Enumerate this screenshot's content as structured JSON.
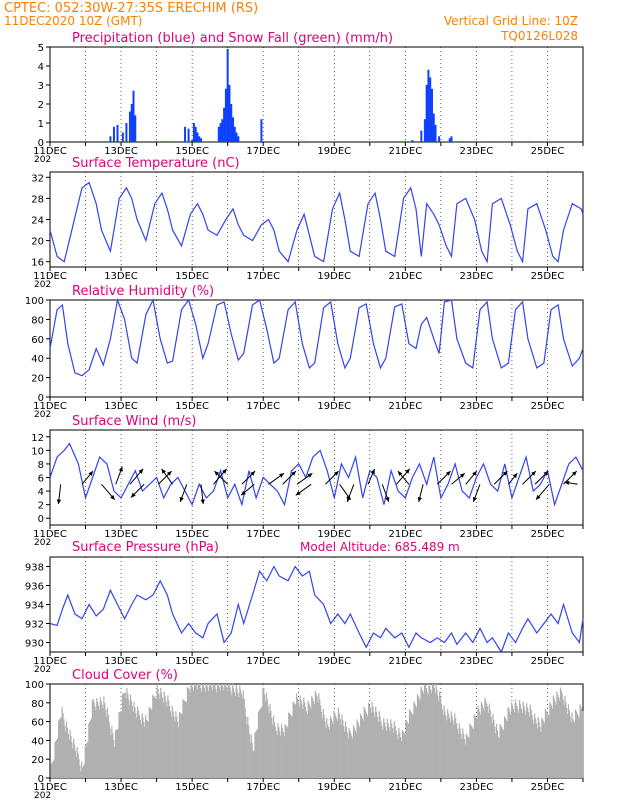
{
  "header": {
    "line1": "CPTEC:   052:30W-27:35S   ERECHIM (RS)",
    "line2": "11DEC2020 10Z (GMT)",
    "vertical_grid": "Vertical Grid Line: 10Z",
    "code": "TQ0126L028",
    "model_altitude": "Model Altitude: 685.489 m"
  },
  "colors": {
    "header": "#ff8000",
    "title": "#e0007a",
    "line": "#3344ee",
    "bar_blue": "#1040ff",
    "bar_green": "#00b000",
    "cloud": "#b0b0b0"
  },
  "chart_data": [
    {
      "type": "bar",
      "title": "Precipitation (blue) and Snow Fall (green) (mm/h)",
      "x_tick_labels": [
        "11DEC",
        "13DEC",
        "15DEC",
        "17DEC",
        "19DEC",
        "21DEC",
        "23DEC",
        "25DEC"
      ],
      "year_fragment": "202",
      "xlim_days": [
        11,
        26
      ],
      "ylim": [
        0,
        5
      ],
      "y_ticks": [
        0,
        1,
        2,
        3,
        4,
        5
      ],
      "series": [
        {
          "name": "Precipitation",
          "color": "blue",
          "x": [
            12.7,
            12.8,
            12.9,
            13.05,
            13.15,
            13.25,
            13.3,
            13.35,
            13.4,
            14.8,
            14.9,
            15.0,
            15.05,
            15.1,
            15.15,
            15.2,
            15.25,
            15.75,
            15.8,
            15.85,
            15.9,
            15.95,
            16.0,
            16.05,
            16.1,
            16.15,
            16.2,
            16.25,
            16.3,
            16.95,
            21.2,
            21.45,
            21.55,
            21.6,
            21.65,
            21.7,
            21.75,
            21.8,
            21.85,
            21.95,
            22.25,
            22.3
          ],
          "y": [
            0.3,
            0.8,
            0.9,
            0.5,
            1.0,
            1.6,
            2.0,
            2.7,
            1.4,
            0.8,
            0.7,
            0.1,
            1.0,
            0.8,
            0.5,
            0.3,
            0.2,
            0.8,
            1.0,
            1.2,
            1.8,
            2.8,
            4.9,
            3.0,
            2.0,
            1.3,
            0.8,
            0.5,
            0.3,
            1.2,
            0.1,
            0.6,
            1.2,
            3.0,
            3.8,
            3.4,
            2.8,
            1.5,
            0.9,
            0.3,
            0.2,
            0.3
          ]
        },
        {
          "name": "Snow Fall",
          "color": "green",
          "x": [
            11.2,
            12.0,
            12.6,
            14.2,
            14.5,
            17.5,
            18.2,
            19.5,
            20.6,
            21.0,
            22.6,
            23.4,
            24.5
          ],
          "y": [
            0.05,
            0.05,
            0.05,
            0.05,
            0.05,
            0.05,
            0.05,
            0.05,
            0.05,
            0.05,
            0.05,
            0.05,
            0.05
          ]
        }
      ]
    },
    {
      "type": "line",
      "title": "Surface Temperature (nC)",
      "x_tick_labels": [
        "11DEC",
        "13DEC",
        "15DEC",
        "17DEC",
        "19DEC",
        "21DEC",
        "23DEC",
        "25DEC"
      ],
      "year_fragment": "202",
      "xlim_days": [
        11,
        26
      ],
      "ylim": [
        15,
        33
      ],
      "y_ticks": [
        16,
        20,
        24,
        28,
        32
      ],
      "x": [
        11.0,
        11.2,
        11.4,
        11.65,
        11.9,
        12.1,
        12.3,
        12.45,
        12.7,
        12.95,
        13.15,
        13.3,
        13.45,
        13.7,
        13.95,
        14.15,
        14.3,
        14.45,
        14.7,
        14.95,
        15.15,
        15.3,
        15.45,
        15.7,
        15.95,
        16.15,
        16.3,
        16.45,
        16.7,
        16.95,
        17.15,
        17.3,
        17.45,
        17.7,
        17.95,
        18.15,
        18.3,
        18.45,
        18.7,
        18.95,
        19.15,
        19.3,
        19.45,
        19.7,
        19.95,
        20.15,
        20.3,
        20.45,
        20.7,
        20.95,
        21.15,
        21.3,
        21.45,
        21.6,
        21.8,
        21.95,
        22.15,
        22.3,
        22.45,
        22.7,
        22.95,
        23.15,
        23.3,
        23.45,
        23.7,
        23.95,
        24.15,
        24.3,
        24.45,
        24.7,
        24.95,
        25.15,
        25.3,
        25.45,
        25.7,
        25.95,
        26.0
      ],
      "y": [
        22,
        17,
        16,
        23,
        30,
        31,
        27,
        22,
        18,
        28,
        30,
        28,
        24,
        20,
        27,
        29,
        26,
        22,
        19,
        25,
        27,
        25,
        22,
        21,
        24,
        26,
        23,
        21,
        20,
        23,
        24,
        22,
        18,
        16,
        22,
        25,
        21,
        17,
        16,
        26,
        29,
        24,
        18,
        17,
        27,
        29,
        24,
        18,
        17,
        28,
        30,
        26,
        17,
        27,
        25,
        23,
        19,
        17,
        27,
        28,
        24,
        18,
        16,
        27,
        28,
        23,
        18,
        16,
        26,
        27,
        22,
        17,
        16,
        22,
        27,
        26,
        25
      ]
    },
    {
      "type": "line",
      "title": "Relative Humidity (%)",
      "x_tick_labels": [
        "11DEC",
        "13DEC",
        "15DEC",
        "17DEC",
        "19DEC",
        "21DEC",
        "23DEC",
        "25DEC"
      ],
      "year_fragment": "202",
      "xlim_days": [
        11,
        26
      ],
      "ylim": [
        0,
        100
      ],
      "y_ticks": [
        0,
        20,
        40,
        60,
        80,
        100
      ],
      "x": [
        11.0,
        11.2,
        11.35,
        11.5,
        11.7,
        11.9,
        12.1,
        12.3,
        12.5,
        12.7,
        12.9,
        13.1,
        13.3,
        13.45,
        13.7,
        13.9,
        14.1,
        14.3,
        14.45,
        14.7,
        14.9,
        15.1,
        15.3,
        15.45,
        15.7,
        15.9,
        16.1,
        16.3,
        16.45,
        16.7,
        16.9,
        17.1,
        17.3,
        17.45,
        17.7,
        17.9,
        18.1,
        18.3,
        18.45,
        18.7,
        18.9,
        19.1,
        19.3,
        19.45,
        19.7,
        19.9,
        20.1,
        20.3,
        20.45,
        20.7,
        20.9,
        21.1,
        21.3,
        21.45,
        21.6,
        21.8,
        21.95,
        22.1,
        22.3,
        22.45,
        22.7,
        22.9,
        23.1,
        23.3,
        23.45,
        23.7,
        23.9,
        24.1,
        24.3,
        24.45,
        24.7,
        24.9,
        25.1,
        25.3,
        25.45,
        25.7,
        25.9,
        26.0
      ],
      "y": [
        50,
        90,
        95,
        55,
        25,
        22,
        28,
        50,
        33,
        60,
        100,
        80,
        40,
        35,
        85,
        100,
        60,
        35,
        37,
        90,
        100,
        75,
        40,
        55,
        95,
        98,
        65,
        38,
        45,
        95,
        100,
        70,
        35,
        40,
        90,
        98,
        55,
        30,
        35,
        92,
        98,
        55,
        30,
        40,
        92,
        96,
        55,
        30,
        40,
        93,
        96,
        55,
        50,
        75,
        82,
        60,
        45,
        98,
        100,
        60,
        35,
        30,
        90,
        98,
        60,
        30,
        35,
        90,
        98,
        60,
        30,
        35,
        90,
        95,
        60,
        32,
        40,
        50
      ]
    },
    {
      "type": "line",
      "title": "Surface Wind (m/s)",
      "x_tick_labels": [
        "11DEC",
        "13DEC",
        "15DEC",
        "17DEC",
        "19DEC",
        "21DEC",
        "23DEC",
        "25DEC"
      ],
      "year_fragment": "202",
      "xlim_days": [
        11,
        26
      ],
      "ylim": [
        -1,
        13
      ],
      "y_ticks": [
        0,
        2,
        4,
        6,
        8,
        10,
        12
      ],
      "x": [
        11.0,
        11.2,
        11.4,
        11.55,
        11.8,
        12.0,
        12.2,
        12.4,
        12.6,
        12.8,
        13.0,
        13.2,
        13.4,
        13.6,
        13.8,
        14.0,
        14.2,
        14.4,
        14.6,
        14.8,
        15.0,
        15.2,
        15.4,
        15.6,
        15.8,
        16.0,
        16.2,
        16.4,
        16.6,
        16.8,
        17.0,
        17.2,
        17.4,
        17.6,
        17.8,
        18.0,
        18.2,
        18.4,
        18.6,
        18.8,
        19.0,
        19.2,
        19.4,
        19.6,
        19.8,
        20.0,
        20.2,
        20.4,
        20.6,
        20.8,
        21.0,
        21.2,
        21.4,
        21.6,
        21.8,
        22.0,
        22.2,
        22.4,
        22.6,
        22.8,
        23.0,
        23.2,
        23.4,
        23.6,
        23.8,
        24.0,
        24.2,
        24.4,
        24.6,
        24.8,
        25.0,
        25.2,
        25.4,
        25.6,
        25.8,
        26.0
      ],
      "y": [
        6,
        9,
        10,
        11,
        8,
        3,
        6,
        9,
        8,
        4,
        3,
        5,
        7,
        4,
        5,
        6,
        3,
        5,
        6,
        4,
        2,
        5,
        3,
        4,
        7,
        3,
        5,
        2,
        7,
        3,
        6,
        5,
        4,
        2,
        7,
        8,
        6,
        9,
        10,
        7,
        3,
        8,
        6,
        9,
        3,
        7,
        6,
        2,
        7,
        4,
        3,
        6,
        8,
        5,
        9,
        3,
        5,
        8,
        4,
        3,
        6,
        8,
        5,
        4,
        8,
        3,
        6,
        9,
        4,
        5,
        7,
        2,
        5,
        8,
        9,
        7
      ],
      "vectors": {
        "x": [
          11.3,
          11.9,
          12.45,
          12.85,
          13.25,
          13.65,
          14.05,
          14.45,
          14.85,
          15.25,
          15.6,
          16.0,
          16.4,
          16.75,
          17.15,
          17.55,
          17.95,
          18.35,
          18.75,
          19.15,
          19.55,
          19.95,
          20.35,
          20.75,
          21.1,
          21.5,
          21.9,
          22.3,
          22.7,
          23.1,
          23.5,
          23.9,
          24.3,
          24.65,
          25.05,
          25.45,
          25.85
        ],
        "u": [
          -0.1,
          0.5,
          0.6,
          0.3,
          0.6,
          -0.6,
          0.6,
          -0.5,
          -0.3,
          0.1,
          0.6,
          -0.6,
          0.6,
          -0.6,
          0.7,
          0.6,
          0.7,
          -0.7,
          0.6,
          0.5,
          -0.3,
          0.3,
          0.3,
          0.6,
          -0.5,
          -0.2,
          0.6,
          0.6,
          0.5,
          -0.3,
          0.6,
          0.4,
          0.6,
          0.6,
          -0.6,
          0.6,
          -0.6
        ],
        "v": [
          -0.9,
          0.6,
          -0.7,
          0.8,
          0.7,
          -0.6,
          0.6,
          0.7,
          -0.8,
          -0.9,
          0.7,
          0.6,
          0.6,
          -0.5,
          0.5,
          0.6,
          0.5,
          -0.5,
          0.6,
          -0.7,
          -0.8,
          0.7,
          -0.8,
          0.7,
          0.6,
          -0.8,
          0.6,
          0.5,
          0.6,
          -0.8,
          0.6,
          0.5,
          0.6,
          0.6,
          -0.7,
          0.6,
          0.1
        ]
      }
    },
    {
      "type": "line",
      "title": "Surface Pressure (hPa)",
      "x_tick_labels": [
        "11DEC",
        "13DEC",
        "15DEC",
        "17DEC",
        "19DEC",
        "21DEC",
        "23DEC",
        "25DEC"
      ],
      "year_fragment": "202",
      "xlim_days": [
        11,
        26
      ],
      "ylim": [
        929,
        939
      ],
      "y_ticks": [
        930,
        932,
        934,
        936,
        938
      ],
      "x": [
        11.0,
        11.2,
        11.35,
        11.5,
        11.7,
        11.9,
        12.1,
        12.3,
        12.5,
        12.7,
        12.9,
        13.1,
        13.3,
        13.45,
        13.7,
        13.9,
        14.1,
        14.3,
        14.45,
        14.7,
        14.9,
        15.1,
        15.3,
        15.45,
        15.7,
        15.9,
        16.1,
        16.3,
        16.45,
        16.7,
        16.9,
        17.1,
        17.3,
        17.45,
        17.7,
        17.9,
        18.1,
        18.3,
        18.45,
        18.7,
        18.9,
        19.1,
        19.3,
        19.45,
        19.7,
        19.9,
        20.1,
        20.3,
        20.45,
        20.7,
        20.9,
        21.1,
        21.3,
        21.45,
        21.7,
        21.9,
        22.1,
        22.3,
        22.45,
        22.7,
        22.9,
        23.1,
        23.3,
        23.45,
        23.7,
        23.9,
        24.1,
        24.3,
        24.45,
        24.7,
        24.9,
        25.1,
        25.3,
        25.45,
        25.7,
        25.9,
        26.0
      ],
      "y": [
        932,
        931.8,
        933.5,
        935,
        933,
        932.5,
        934,
        932.8,
        933.5,
        935.5,
        934,
        932.5,
        934,
        935,
        934.5,
        935,
        936.5,
        935,
        933,
        931,
        932,
        931,
        930.5,
        932,
        933,
        930,
        931,
        934,
        932,
        935,
        937.5,
        936.5,
        938,
        937,
        936.5,
        938,
        937,
        937.5,
        935,
        934,
        932,
        933,
        932,
        933,
        931,
        929.5,
        931,
        930.5,
        931.5,
        930.5,
        931,
        929.5,
        931,
        930.5,
        930,
        930.5,
        930,
        931,
        929.8,
        931,
        930,
        931.5,
        930,
        930.5,
        929,
        931,
        930,
        931.5,
        932.5,
        931,
        932,
        933,
        932,
        934,
        931,
        930,
        932.5
      ]
    },
    {
      "type": "area",
      "title": "Cloud Cover (%)",
      "x_tick_labels": [
        "11DEC",
        "13DEC",
        "15DEC",
        "17DEC",
        "19DEC",
        "21DEC",
        "23DEC",
        "25DEC"
      ],
      "year_fragment": "202",
      "xlim_days": [
        11,
        26
      ],
      "ylim": [
        0,
        100
      ],
      "y_ticks": [
        0,
        20,
        40,
        60,
        80,
        100
      ],
      "x": [
        11.0,
        11.3,
        11.6,
        11.9,
        12.2,
        12.5,
        12.8,
        13.1,
        13.4,
        13.7,
        14.0,
        14.3,
        14.6,
        14.9,
        15.2,
        15.5,
        15.8,
        16.1,
        16.4,
        16.7,
        17.0,
        17.3,
        17.6,
        17.9,
        18.2,
        18.5,
        18.8,
        19.1,
        19.4,
        19.7,
        20.0,
        20.3,
        20.6,
        20.9,
        21.2,
        21.5,
        21.8,
        22.1,
        22.4,
        22.7,
        23.0,
        23.3,
        23.6,
        23.9,
        24.2,
        24.5,
        24.8,
        25.1,
        25.4,
        25.7,
        26.0
      ],
      "y": [
        5,
        70,
        40,
        10,
        80,
        80,
        40,
        95,
        70,
        60,
        95,
        80,
        60,
        98,
        100,
        98,
        100,
        96,
        90,
        30,
        95,
        55,
        50,
        85,
        75,
        88,
        55,
        70,
        45,
        60,
        78,
        60,
        55,
        45,
        75,
        95,
        98,
        70,
        60,
        40,
        70,
        80,
        45,
        72,
        78,
        70,
        55,
        80,
        90,
        60,
        80
      ]
    }
  ]
}
